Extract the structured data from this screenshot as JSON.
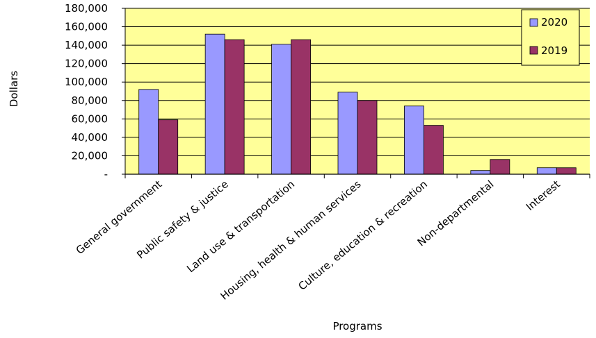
{
  "chart_data": {
    "type": "bar",
    "xlabel": "Programs",
    "ylabel": "Dollars",
    "ylim": [
      0,
      180000
    ],
    "yticks": [
      0,
      20000,
      40000,
      60000,
      80000,
      100000,
      120000,
      140000,
      160000,
      180000
    ],
    "ytick_labels": [
      "-",
      "20,000",
      "40,000",
      "60,000",
      "80,000",
      "100,000",
      "120,000",
      "140,000",
      "160,000",
      "180,000"
    ],
    "categories": [
      "General government",
      "Public safety & justice",
      "Land use & transportation",
      "Housing, health & human services",
      "Culture, education & recreation",
      "Non-departmental",
      "Interest"
    ],
    "series": [
      {
        "name": "2020",
        "color": "#9999FF",
        "values": [
          92000,
          152000,
          141000,
          89000,
          74000,
          4000,
          7000
        ]
      },
      {
        "name": "2019",
        "color": "#993366",
        "values": [
          59000,
          146000,
          146000,
          80000,
          53000,
          16000,
          7000
        ]
      }
    ],
    "grid": true,
    "legend_position": "top-right",
    "plot_background": "#FFFF99"
  }
}
